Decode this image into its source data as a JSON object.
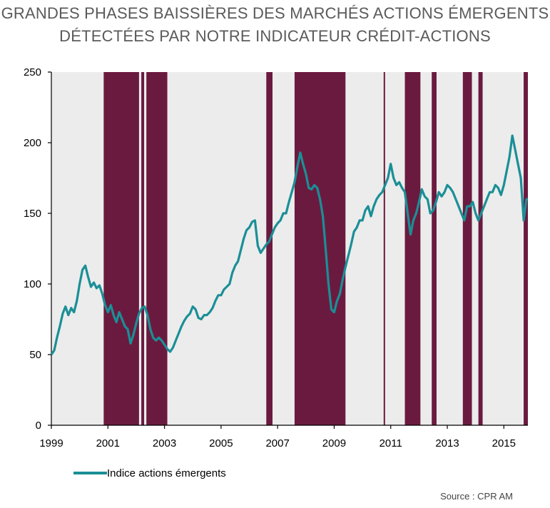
{
  "chart_data": {
    "type": "line",
    "title_line1": "GRANDES PHASES BAISSIÈRES DES MARCHÉS ACTIONS ÉMERGENTS",
    "title_line2": "DÉTECTÉES PAR NOTRE INDICATEUR CRÉDIT-ACTIONS",
    "xlim": [
      1999,
      2015.85
    ],
    "ylim": [
      0,
      250
    ],
    "yticks": [
      0,
      50,
      100,
      150,
      200,
      250
    ],
    "xticks": [
      1999,
      2001,
      2003,
      2005,
      2007,
      2009,
      2011,
      2013,
      2015
    ],
    "grid": false,
    "legend_position": "bottom-left",
    "colors": {
      "line": "#1a8f96",
      "band": "#6b1a3f",
      "background": "#ececec"
    },
    "series": [
      {
        "name": "Indice actions émergents",
        "points": [
          [
            1999.0,
            50
          ],
          [
            1999.1,
            53
          ],
          [
            1999.2,
            62
          ],
          [
            1999.3,
            70
          ],
          [
            1999.4,
            79
          ],
          [
            1999.5,
            84
          ],
          [
            1999.6,
            78
          ],
          [
            1999.7,
            83
          ],
          [
            1999.8,
            80
          ],
          [
            1999.9,
            88
          ],
          [
            2000.0,
            100
          ],
          [
            2000.1,
            110
          ],
          [
            2000.2,
            113
          ],
          [
            2000.3,
            105
          ],
          [
            2000.4,
            98
          ],
          [
            2000.5,
            101
          ],
          [
            2000.6,
            97
          ],
          [
            2000.7,
            99
          ],
          [
            2000.8,
            93
          ],
          [
            2000.9,
            85
          ],
          [
            2001.0,
            80
          ],
          [
            2001.1,
            85
          ],
          [
            2001.2,
            78
          ],
          [
            2001.3,
            73
          ],
          [
            2001.4,
            80
          ],
          [
            2001.5,
            75
          ],
          [
            2001.6,
            70
          ],
          [
            2001.7,
            68
          ],
          [
            2001.8,
            58
          ],
          [
            2001.9,
            64
          ],
          [
            2002.0,
            72
          ],
          [
            2002.1,
            79
          ],
          [
            2002.2,
            83
          ],
          [
            2002.3,
            84
          ],
          [
            2002.4,
            78
          ],
          [
            2002.5,
            68
          ],
          [
            2002.6,
            62
          ],
          [
            2002.7,
            60
          ],
          [
            2002.8,
            62
          ],
          [
            2002.9,
            60
          ],
          [
            2003.0,
            57
          ],
          [
            2003.1,
            54
          ],
          [
            2003.2,
            52
          ],
          [
            2003.3,
            55
          ],
          [
            2003.4,
            60
          ],
          [
            2003.5,
            65
          ],
          [
            2003.6,
            70
          ],
          [
            2003.7,
            74
          ],
          [
            2003.8,
            77
          ],
          [
            2003.9,
            79
          ],
          [
            2004.0,
            84
          ],
          [
            2004.1,
            82
          ],
          [
            2004.2,
            76
          ],
          [
            2004.3,
            75
          ],
          [
            2004.4,
            78
          ],
          [
            2004.5,
            78
          ],
          [
            2004.6,
            80
          ],
          [
            2004.7,
            83
          ],
          [
            2004.8,
            88
          ],
          [
            2004.9,
            92
          ],
          [
            2005.0,
            92
          ],
          [
            2005.1,
            96
          ],
          [
            2005.2,
            98
          ],
          [
            2005.3,
            100
          ],
          [
            2005.4,
            108
          ],
          [
            2005.5,
            113
          ],
          [
            2005.6,
            116
          ],
          [
            2005.7,
            124
          ],
          [
            2005.8,
            132
          ],
          [
            2005.9,
            138
          ],
          [
            2006.0,
            140
          ],
          [
            2006.1,
            144
          ],
          [
            2006.2,
            145
          ],
          [
            2006.3,
            127
          ],
          [
            2006.4,
            122
          ],
          [
            2006.5,
            125
          ],
          [
            2006.6,
            128
          ],
          [
            2006.7,
            130
          ],
          [
            2006.8,
            135
          ],
          [
            2006.9,
            140
          ],
          [
            2007.0,
            143
          ],
          [
            2007.1,
            145
          ],
          [
            2007.2,
            150
          ],
          [
            2007.3,
            150
          ],
          [
            2007.4,
            158
          ],
          [
            2007.5,
            165
          ],
          [
            2007.6,
            172
          ],
          [
            2007.7,
            183
          ],
          [
            2007.8,
            193
          ],
          [
            2007.9,
            185
          ],
          [
            2008.0,
            178
          ],
          [
            2008.1,
            168
          ],
          [
            2008.2,
            167
          ],
          [
            2008.3,
            170
          ],
          [
            2008.4,
            168
          ],
          [
            2008.5,
            160
          ],
          [
            2008.6,
            148
          ],
          [
            2008.7,
            125
          ],
          [
            2008.8,
            100
          ],
          [
            2008.9,
            82
          ],
          [
            2009.0,
            80
          ],
          [
            2009.1,
            88
          ],
          [
            2009.2,
            93
          ],
          [
            2009.3,
            103
          ],
          [
            2009.4,
            112
          ],
          [
            2009.5,
            120
          ],
          [
            2009.6,
            128
          ],
          [
            2009.7,
            137
          ],
          [
            2009.8,
            140
          ],
          [
            2009.9,
            145
          ],
          [
            2010.0,
            145
          ],
          [
            2010.1,
            152
          ],
          [
            2010.2,
            155
          ],
          [
            2010.3,
            148
          ],
          [
            2010.4,
            155
          ],
          [
            2010.5,
            160
          ],
          [
            2010.6,
            163
          ],
          [
            2010.7,
            165
          ],
          [
            2010.8,
            170
          ],
          [
            2010.9,
            175
          ],
          [
            2011.0,
            185
          ],
          [
            2011.1,
            175
          ],
          [
            2011.2,
            170
          ],
          [
            2011.3,
            172
          ],
          [
            2011.4,
            168
          ],
          [
            2011.5,
            165
          ],
          [
            2011.6,
            150
          ],
          [
            2011.7,
            135
          ],
          [
            2011.8,
            145
          ],
          [
            2011.9,
            150
          ],
          [
            2012.0,
            158
          ],
          [
            2012.1,
            167
          ],
          [
            2012.2,
            162
          ],
          [
            2012.3,
            160
          ],
          [
            2012.4,
            150
          ],
          [
            2012.5,
            152
          ],
          [
            2012.6,
            158
          ],
          [
            2012.7,
            165
          ],
          [
            2012.8,
            162
          ],
          [
            2012.9,
            165
          ],
          [
            2013.0,
            170
          ],
          [
            2013.1,
            168
          ],
          [
            2013.2,
            165
          ],
          [
            2013.3,
            160
          ],
          [
            2013.4,
            155
          ],
          [
            2013.5,
            150
          ],
          [
            2013.6,
            145
          ],
          [
            2013.7,
            155
          ],
          [
            2013.8,
            155
          ],
          [
            2013.9,
            158
          ],
          [
            2014.0,
            150
          ],
          [
            2014.1,
            145
          ],
          [
            2014.2,
            150
          ],
          [
            2014.3,
            155
          ],
          [
            2014.4,
            160
          ],
          [
            2014.5,
            165
          ],
          [
            2014.6,
            165
          ],
          [
            2014.7,
            170
          ],
          [
            2014.8,
            168
          ],
          [
            2014.9,
            163
          ],
          [
            2015.0,
            170
          ],
          [
            2015.1,
            180
          ],
          [
            2015.2,
            190
          ],
          [
            2015.3,
            205
          ],
          [
            2015.4,
            195
          ],
          [
            2015.5,
            185
          ],
          [
            2015.6,
            175
          ],
          [
            2015.7,
            145
          ],
          [
            2015.8,
            160
          ],
          [
            2015.85,
            160
          ]
        ]
      }
    ],
    "shaded_periods": [
      [
        2000.85,
        2002.1
      ],
      [
        2002.18,
        2002.28
      ],
      [
        2002.36,
        2003.1
      ],
      [
        2006.6,
        2006.82
      ],
      [
        2007.6,
        2009.4
      ],
      [
        2010.75,
        2010.8
      ],
      [
        2011.5,
        2012.05
      ],
      [
        2012.45,
        2012.62
      ],
      [
        2013.55,
        2013.87
      ],
      [
        2014.1,
        2014.25
      ],
      [
        2015.7,
        2015.85
      ]
    ],
    "source": "Source : CPR AM"
  }
}
